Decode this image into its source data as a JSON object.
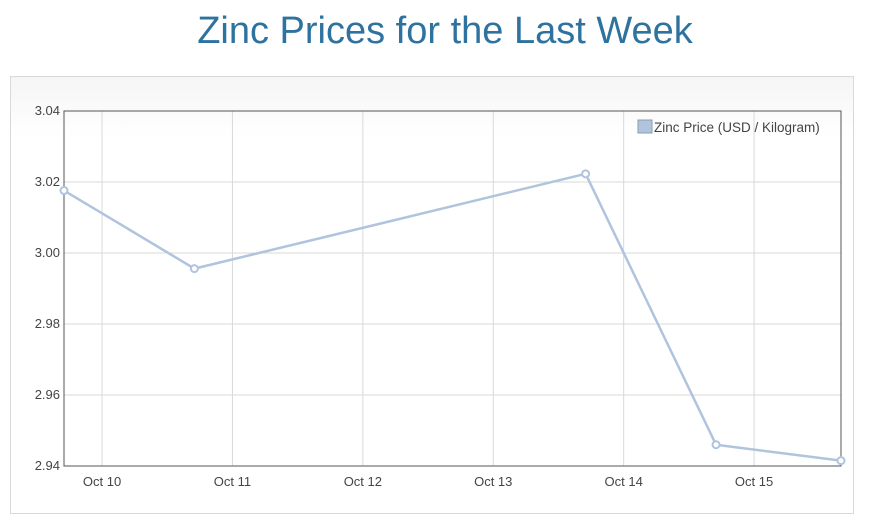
{
  "page": {
    "title": "Zinc Prices for the Last Week"
  },
  "chart_data": {
    "type": "line",
    "title": "Zinc Prices for the Last Week",
    "xlabel": "",
    "ylabel": "",
    "x_ticks": [
      "Oct 10",
      "Oct 11",
      "Oct 12",
      "Oct 13",
      "Oct 14",
      "Oct 15"
    ],
    "y_ticks": [
      "3.04",
      "3.02",
      "3.00",
      "2.98",
      "2.96",
      "2.94"
    ],
    "ylim": [
      2.94,
      3.04
    ],
    "xlim": [
      "2023-10-09 17:00",
      "2023-10-15 16:00"
    ],
    "series": [
      {
        "name": "Zinc Price (USD / Kilogram)",
        "color": "#b0c4de",
        "points": [
          {
            "x": "2023-10-09 17:00",
            "y": 3.0176
          },
          {
            "x": "2023-10-10 17:00",
            "y": 2.9956
          },
          {
            "x": "2023-10-13 17:00",
            "y": 3.0223
          },
          {
            "x": "2023-10-14 17:00",
            "y": 2.946
          },
          {
            "x": "2023-10-15 16:00",
            "y": 2.9415
          }
        ]
      }
    ],
    "grid": true,
    "legend_position": "top-right"
  }
}
